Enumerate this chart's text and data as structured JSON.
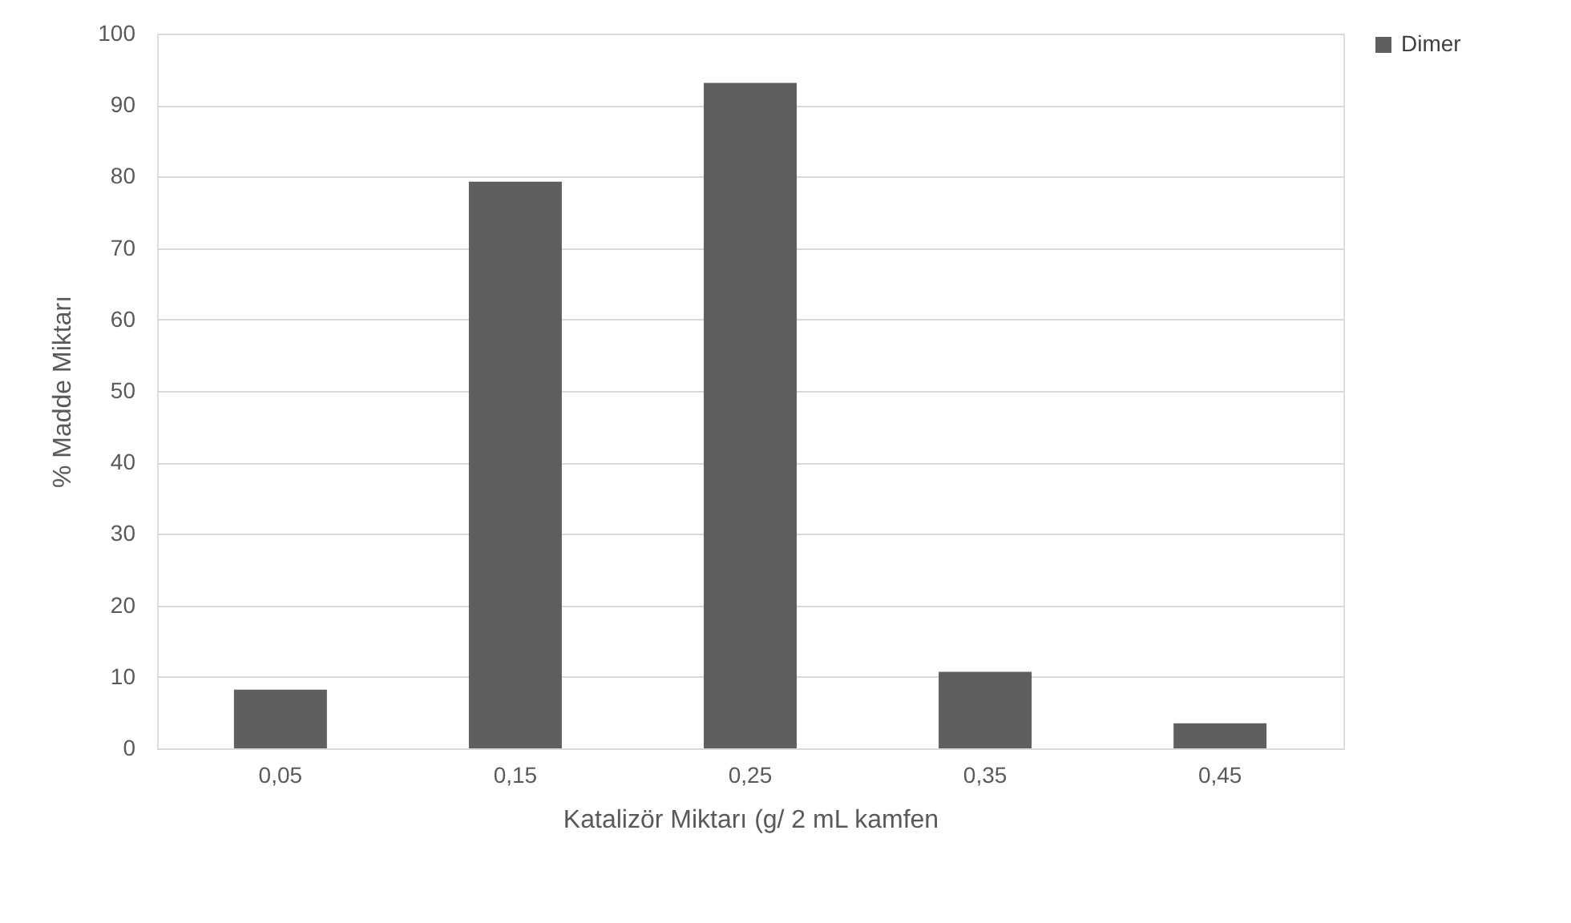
{
  "chart_data": {
    "type": "bar",
    "xlabel": "Katalizör Miktarı (g/ 2 mL kamfen",
    "ylabel": "% Madde Miktarı",
    "categories": [
      "0,05",
      "0,15",
      "0,25",
      "0,35",
      "0,45"
    ],
    "series": [
      {
        "name": "Dimer",
        "color": "#5f5f5f",
        "values": [
          8.2,
          79.3,
          93.1,
          10.7,
          3.5
        ]
      }
    ],
    "ylim": [
      0,
      100
    ],
    "yticks": [
      0,
      10,
      20,
      30,
      40,
      50,
      60,
      70,
      80,
      90,
      100
    ],
    "grid": "y",
    "legend": "right"
  }
}
